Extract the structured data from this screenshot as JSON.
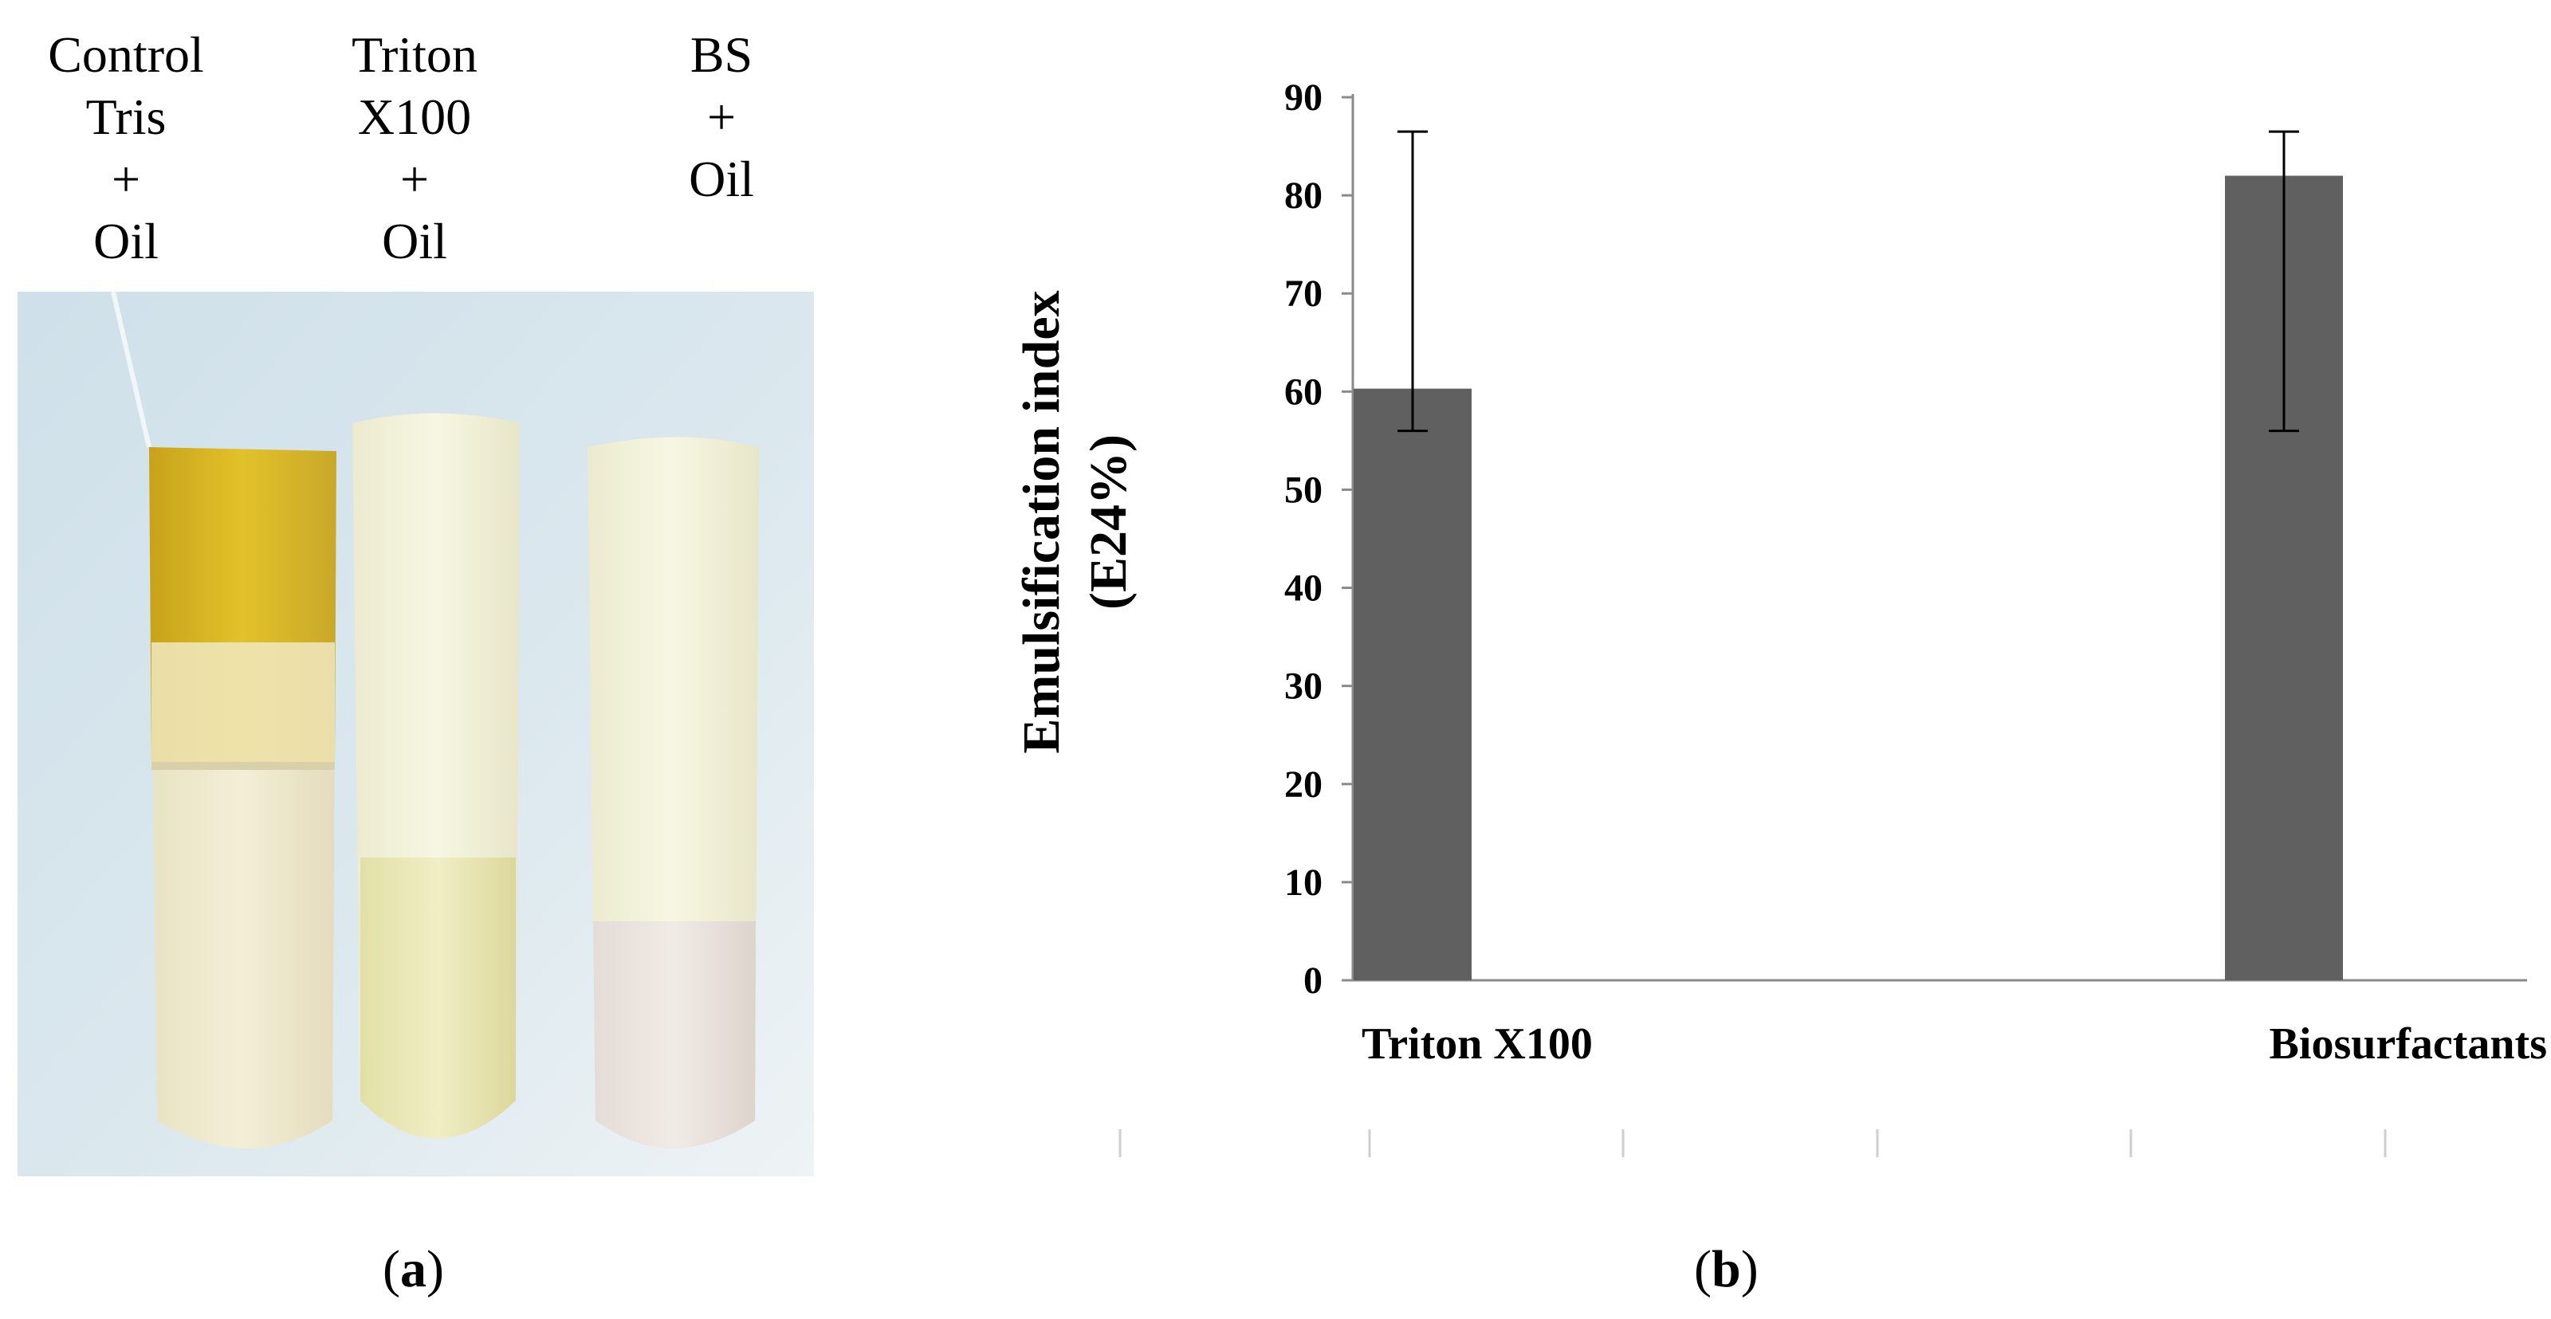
{
  "panel_a": {
    "tubes": [
      {
        "lines": [
          "Control",
          "Tris",
          "+",
          "Oil"
        ]
      },
      {
        "lines": [
          "Triton",
          "X100",
          "+",
          "Oil"
        ]
      },
      {
        "lines": [
          "BS",
          "+",
          "Oil"
        ]
      }
    ],
    "caption_open": "(",
    "caption_letter": "a",
    "caption_close": ")"
  },
  "panel_b": {
    "caption_open": "(",
    "caption_letter": "b",
    "caption_close": ")"
  },
  "chart_data": {
    "type": "bar",
    "categories": [
      "Triton X100",
      "Biosurfactants"
    ],
    "values": [
      60.3,
      82.0
    ],
    "error_bars": [
      {
        "low": 56.0,
        "high": 86.5
      },
      {
        "low": 56.0,
        "high": 86.5
      }
    ],
    "ylabel_line1": "Emulsification index",
    "ylabel_line2": "(E24%)",
    "ylim": [
      0,
      90
    ],
    "yticks": [
      0,
      10,
      20,
      30,
      40,
      50,
      60,
      70,
      80,
      90
    ],
    "bar_color": "#606060",
    "grid": false
  }
}
